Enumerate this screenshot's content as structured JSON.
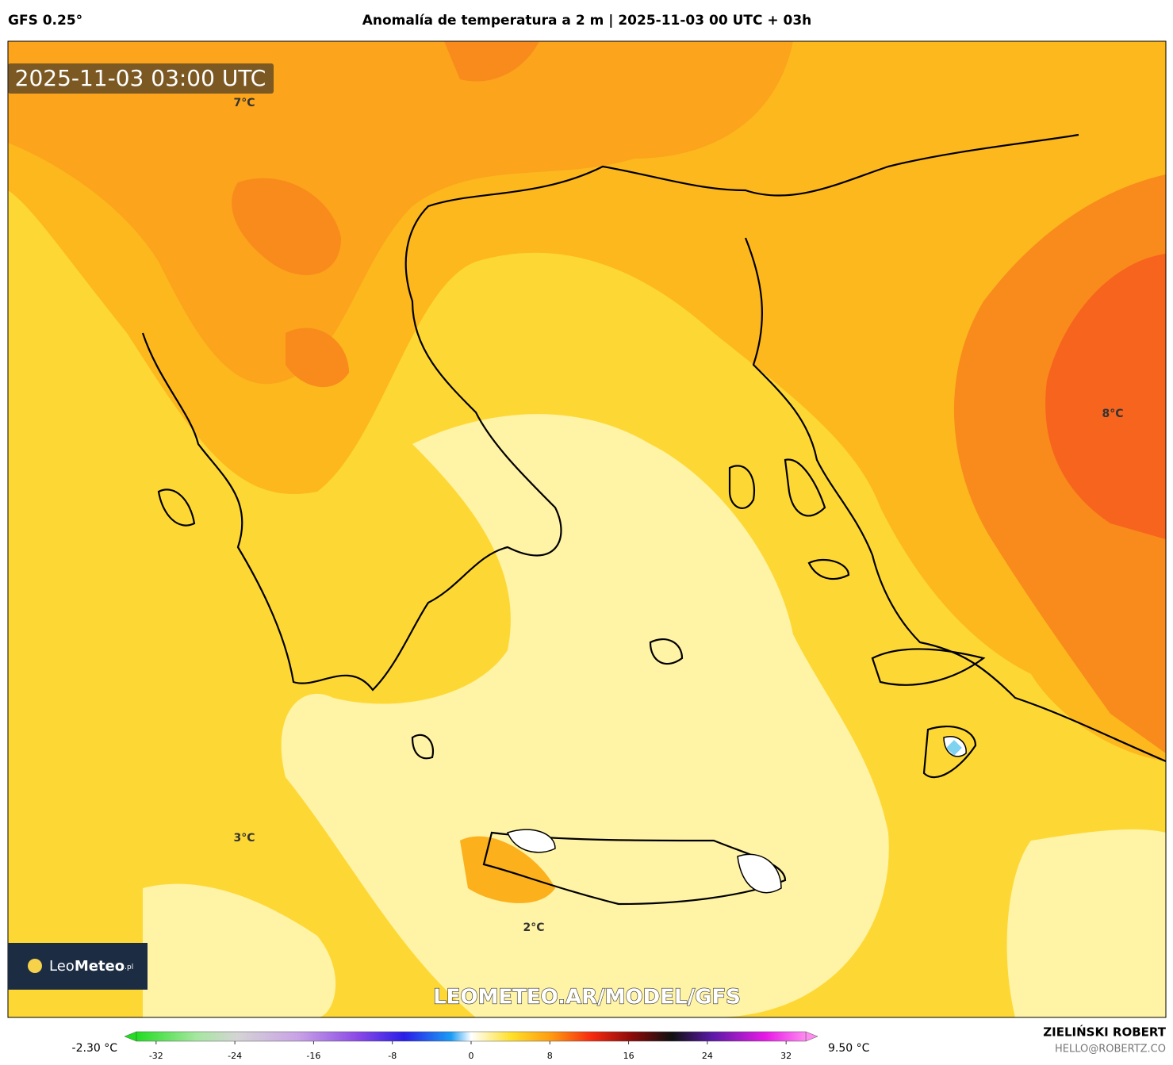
{
  "header": {
    "model": "GFS 0.25°",
    "title": "Anomalía de temperatura a 2 m | 2025-11-03 00 UTC + 03h"
  },
  "timestamp": "2025-11-03 03:00 UTC",
  "map_labels": [
    "7°C",
    "8°C",
    "3°C",
    "2°C"
  ],
  "logo": {
    "name": "Leo",
    "bold": "Meteo",
    "suffix": ".pl"
  },
  "watermark": "LEOMETEO.AR/MODEL/GFS",
  "colorbar": {
    "min_label": "-2.30 °C",
    "max_label": "9.50 °C",
    "lim": [
      -34,
      34
    ],
    "ticks": [
      -32,
      -24,
      -16,
      -8,
      0,
      8,
      16,
      24,
      32
    ]
  },
  "credits": {
    "name": "ZIELIŃSKI ROBERT",
    "email": "HELLO@ROBERTZ.CO"
  }
}
